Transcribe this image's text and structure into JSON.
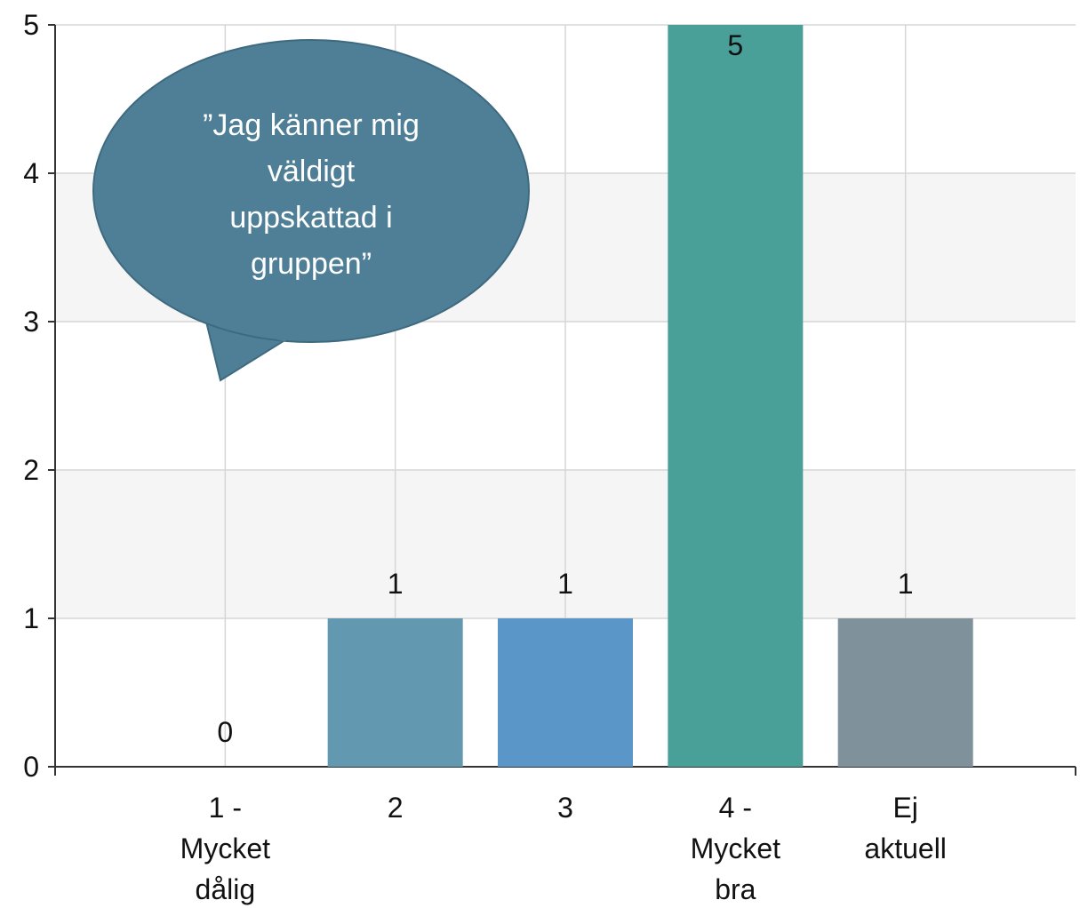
{
  "chart_data": {
    "type": "bar",
    "categories": [
      "1 -\nMycket\ndålig",
      "2",
      "3",
      "4 -\nMycket\nbra",
      "Ej\naktuell"
    ],
    "values": [
      0,
      1,
      1,
      5,
      1
    ],
    "colors": [
      "#5f93ad",
      "#6399b0",
      "#5b96c8",
      "#49a098",
      "#7f919b"
    ],
    "ylim": [
      0,
      5
    ],
    "yticks": [
      0,
      1,
      2,
      3,
      4,
      5
    ],
    "grid": true,
    "annotation": "”Jag känner mig\nväldigt\nuppskattad i\ngruppen”"
  }
}
